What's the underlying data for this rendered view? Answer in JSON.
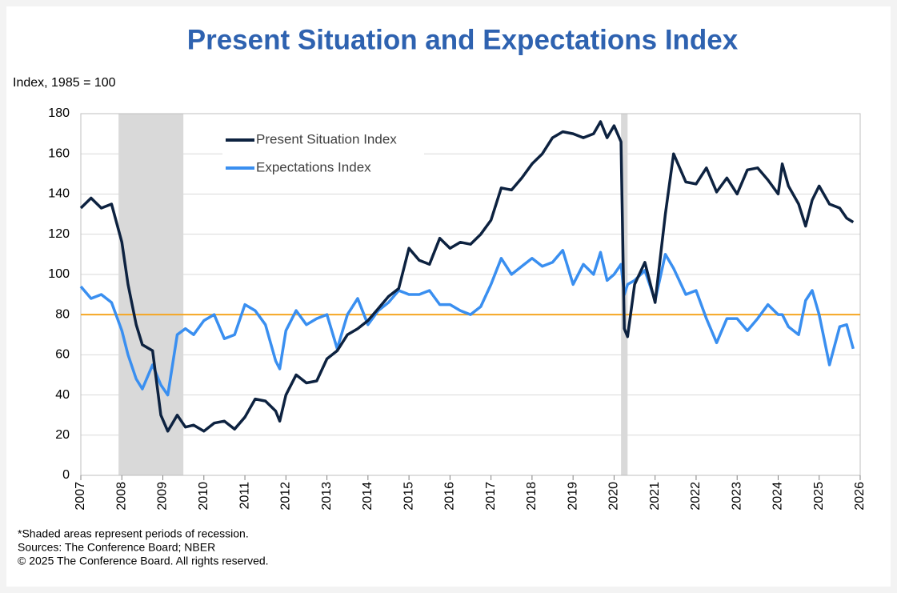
{
  "chart_data": {
    "type": "line",
    "title": "Present Situation and Expectations Index",
    "y_label": "Index, 1985 = 100",
    "x": [
      2007.0,
      2007.25,
      2007.5,
      2007.75,
      2008.0,
      2008.15,
      2008.35,
      2008.5,
      2008.75,
      2008.95,
      2009.12,
      2009.35,
      2009.55,
      2009.75,
      2010.0,
      2010.25,
      2010.5,
      2010.75,
      2011.0,
      2011.25,
      2011.5,
      2011.75,
      2011.85,
      2012.0,
      2012.25,
      2012.5,
      2012.75,
      2013.0,
      2013.25,
      2013.5,
      2013.75,
      2014.0,
      2014.25,
      2014.5,
      2014.75,
      2015.0,
      2015.25,
      2015.5,
      2015.75,
      2016.0,
      2016.25,
      2016.5,
      2016.75,
      2017.0,
      2017.25,
      2017.5,
      2017.75,
      2018.0,
      2018.25,
      2018.5,
      2018.75,
      2019.0,
      2019.25,
      2019.5,
      2019.67,
      2019.83,
      2020.0,
      2020.17,
      2020.25,
      2020.33,
      2020.5,
      2020.75,
      2021.0,
      2021.25,
      2021.45,
      2021.75,
      2022.0,
      2022.25,
      2022.5,
      2022.75,
      2023.0,
      2023.25,
      2023.5,
      2023.75,
      2024.0,
      2024.1,
      2024.25,
      2024.5,
      2024.67,
      2024.83,
      2025.0,
      2025.25,
      2025.5,
      2025.67,
      2025.83
    ],
    "series": [
      {
        "name": "Present Situation Index",
        "color": "#0d2240",
        "values": [
          133,
          138,
          133,
          135,
          116,
          95,
          75,
          65,
          62,
          30,
          22,
          30,
          24,
          25,
          22,
          26,
          27,
          23,
          29,
          38,
          37,
          32,
          27,
          40,
          50,
          46,
          47,
          58,
          62,
          70,
          73,
          77,
          83,
          89,
          93,
          113,
          107,
          105,
          118,
          113,
          116,
          115,
          120,
          127,
          143,
          142,
          148,
          155,
          160,
          168,
          171,
          170,
          168,
          170,
          176,
          168,
          174,
          166,
          73,
          69,
          95,
          106,
          86,
          130,
          160,
          146,
          145,
          153,
          141,
          148,
          140,
          152,
          153,
          147,
          140,
          155,
          144,
          135,
          124,
          137,
          144,
          135,
          133,
          128,
          126
        ]
      },
      {
        "name": "Expectations Index",
        "color": "#3a8ff0",
        "values": [
          94,
          88,
          90,
          86,
          72,
          60,
          48,
          43,
          55,
          45,
          40,
          70,
          73,
          70,
          77,
          80,
          68,
          70,
          85,
          82,
          75,
          57,
          53,
          72,
          82,
          75,
          78,
          80,
          63,
          80,
          88,
          75,
          82,
          86,
          92,
          90,
          90,
          92,
          85,
          85,
          82,
          80,
          84,
          95,
          108,
          100,
          104,
          108,
          104,
          106,
          112,
          95,
          105,
          100,
          111,
          97,
          100,
          105,
          90,
          95,
          97,
          102,
          87,
          110,
          103,
          90,
          92,
          78,
          66,
          78,
          78,
          72,
          78,
          85,
          80,
          80,
          74,
          70,
          87,
          92,
          80,
          55,
          74,
          75,
          63
        ]
      }
    ],
    "recessions": [
      [
        2007.92,
        2009.5
      ],
      [
        2020.17,
        2020.33
      ]
    ],
    "reference_line": {
      "value": 80,
      "color": "#f5a623"
    },
    "xlim": [
      2007,
      2026
    ],
    "xticks": [
      2007,
      2008,
      2009,
      2010,
      2011,
      2012,
      2013,
      2014,
      2015,
      2016,
      2017,
      2018,
      2019,
      2020,
      2021,
      2022,
      2023,
      2024,
      2025,
      2026
    ],
    "ylim": [
      0,
      180
    ],
    "yticks": [
      0,
      20,
      40,
      60,
      80,
      100,
      120,
      140,
      160,
      180
    ],
    "grid": true,
    "legend": "top-left",
    "notes": [
      "*Shaded areas represent periods of recession.",
      "Sources:  The Conference Board;  NBER",
      "© 2025 The Conference Board. All rights reserved."
    ]
  }
}
